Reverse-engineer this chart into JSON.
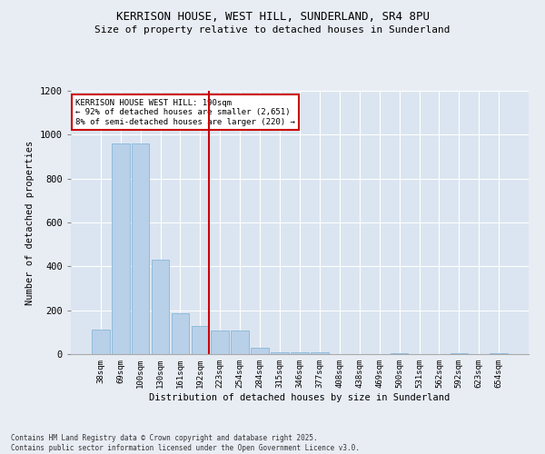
{
  "title_line1": "KERRISON HOUSE, WEST HILL, SUNDERLAND, SR4 8PU",
  "title_line2": "Size of property relative to detached houses in Sunderland",
  "xlabel": "Distribution of detached houses by size in Sunderland",
  "ylabel": "Number of detached properties",
  "categories": [
    "38sqm",
    "69sqm",
    "100sqm",
    "130sqm",
    "161sqm",
    "192sqm",
    "223sqm",
    "254sqm",
    "284sqm",
    "315sqm",
    "346sqm",
    "377sqm",
    "408sqm",
    "438sqm",
    "469sqm",
    "500sqm",
    "531sqm",
    "562sqm",
    "592sqm",
    "623sqm",
    "654sqm"
  ],
  "values": [
    110,
    960,
    960,
    430,
    185,
    130,
    108,
    108,
    30,
    10,
    10,
    8,
    0,
    0,
    0,
    5,
    0,
    0,
    5,
    0,
    5
  ],
  "bar_color": "#b8d0e8",
  "bar_edge_color": "#7aafd4",
  "red_line_index": 5,
  "annotation_text": "KERRISON HOUSE WEST HILL: 190sqm\n← 92% of detached houses are smaller (2,651)\n8% of semi-detached houses are larger (220) →",
  "annotation_box_color": "#ffffff",
  "annotation_border_color": "#cc0000",
  "red_line_color": "#cc0000",
  "background_color": "#e8edf4",
  "plot_bg_color": "#dbe5f1",
  "grid_color": "#ffffff",
  "footer_line1": "Contains HM Land Registry data © Crown copyright and database right 2025.",
  "footer_line2": "Contains public sector information licensed under the Open Government Licence v3.0.",
  "ylim": [
    0,
    1200
  ],
  "yticks": [
    0,
    200,
    400,
    600,
    800,
    1000,
    1200
  ]
}
